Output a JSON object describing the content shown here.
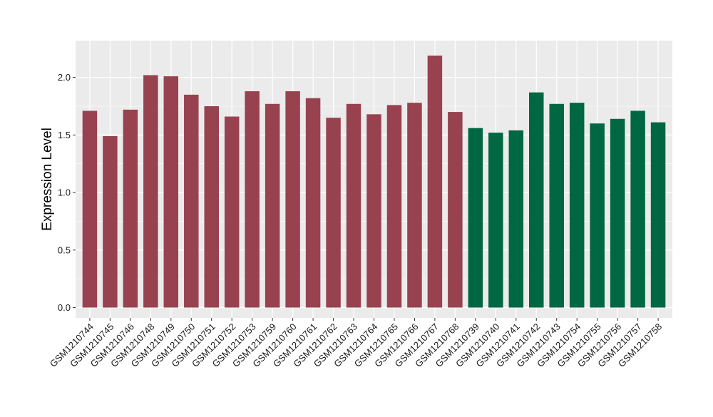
{
  "chart_data": {
    "type": "bar",
    "title": "",
    "xlabel": "",
    "ylabel": "Expression Level",
    "ylim": [
      -0.09,
      2.32
    ],
    "yticks": [
      0.0,
      0.5,
      1.0,
      1.5,
      2.0
    ],
    "ytick_labels": [
      "0.0",
      "0.5",
      "1.0",
      "1.5",
      "2.0"
    ],
    "grid": true,
    "legend": "none",
    "colors": {
      "panel_background": "#EBEBEB",
      "grid_line": "#FFFFFF",
      "group_1": "#98424F",
      "group_2": "#006743"
    },
    "categories": [
      "GSM1210744",
      "GSM1210745",
      "GSM1210746",
      "GSM1210748",
      "GSM1210749",
      "GSM1210750",
      "GSM1210751",
      "GSM1210752",
      "GSM1210753",
      "GSM1210759",
      "GSM1210760",
      "GSM1210761",
      "GSM1210762",
      "GSM1210763",
      "GSM1210764",
      "GSM1210765",
      "GSM1210766",
      "GSM1210767",
      "GSM1210768",
      "GSM1210739",
      "GSM1210740",
      "GSM1210741",
      "GSM1210742",
      "GSM1210743",
      "GSM1210754",
      "GSM1210755",
      "GSM1210756",
      "GSM1210757",
      "GSM1210758"
    ],
    "values": [
      1.71,
      1.49,
      1.72,
      2.02,
      2.01,
      1.85,
      1.75,
      1.66,
      1.88,
      1.77,
      1.88,
      1.82,
      1.65,
      1.77,
      1.68,
      1.76,
      1.78,
      2.19,
      1.7,
      1.56,
      1.52,
      1.54,
      1.87,
      1.77,
      1.78,
      1.6,
      1.64,
      1.71,
      1.61
    ],
    "bar_groups": [
      "group_1",
      "group_1",
      "group_1",
      "group_1",
      "group_1",
      "group_1",
      "group_1",
      "group_1",
      "group_1",
      "group_1",
      "group_1",
      "group_1",
      "group_1",
      "group_1",
      "group_1",
      "group_1",
      "group_1",
      "group_1",
      "group_1",
      "group_2",
      "group_2",
      "group_2",
      "group_2",
      "group_2",
      "group_2",
      "group_2",
      "group_2",
      "group_2",
      "group_2"
    ]
  }
}
